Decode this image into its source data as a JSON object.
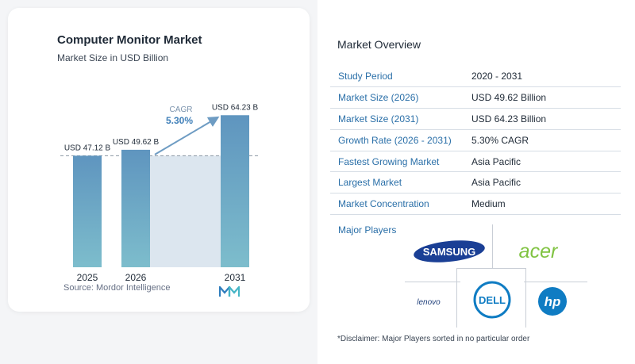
{
  "chart_card": {
    "title": "Computer Monitor Market",
    "subtitle": "Market Size in USD Billion",
    "source": "Source:  Mordor Intelligence"
  },
  "chart_data": {
    "type": "bar",
    "categories": [
      "2025",
      "2026",
      "2031"
    ],
    "values": [
      47.12,
      49.62,
      64.23
    ],
    "value_labels": [
      "USD 47.12 B",
      "USD 49.62 B",
      "USD 64.23 B"
    ],
    "title": "Computer Monitor Market",
    "subtitle": "Market Size in USD Billion",
    "cagr_label": "CAGR",
    "cagr_value": "5.30%",
    "colors": {
      "bar": "#5f95bf",
      "bar_bottom": "#7dbdcc",
      "band": "#dce6ef",
      "arrow": "#6e9cc3"
    }
  },
  "overview": {
    "title": "Market Overview",
    "rows": [
      {
        "label": "Study Period",
        "value": "2020 - 2031"
      },
      {
        "label": "Market Size (2026)",
        "value": "USD 49.62 Billion"
      },
      {
        "label": "Market Size (2031)",
        "value": "USD 64.23 Billion"
      },
      {
        "label": "Growth Rate (2026 - 2031)",
        "value": "5.30% CAGR"
      },
      {
        "label": "Fastest Growing Market",
        "value": "Asia Pacific"
      },
      {
        "label": "Largest Market",
        "value": "Asia Pacific"
      },
      {
        "label": "Market Concentration",
        "value": "Medium"
      }
    ],
    "major_players_title": "Major Players",
    "players": [
      "SAMSUNG",
      "acer",
      "lenovo",
      "DELL",
      "hp"
    ],
    "disclaimer": "*Disclaimer: Major Players sorted in no particular order"
  }
}
